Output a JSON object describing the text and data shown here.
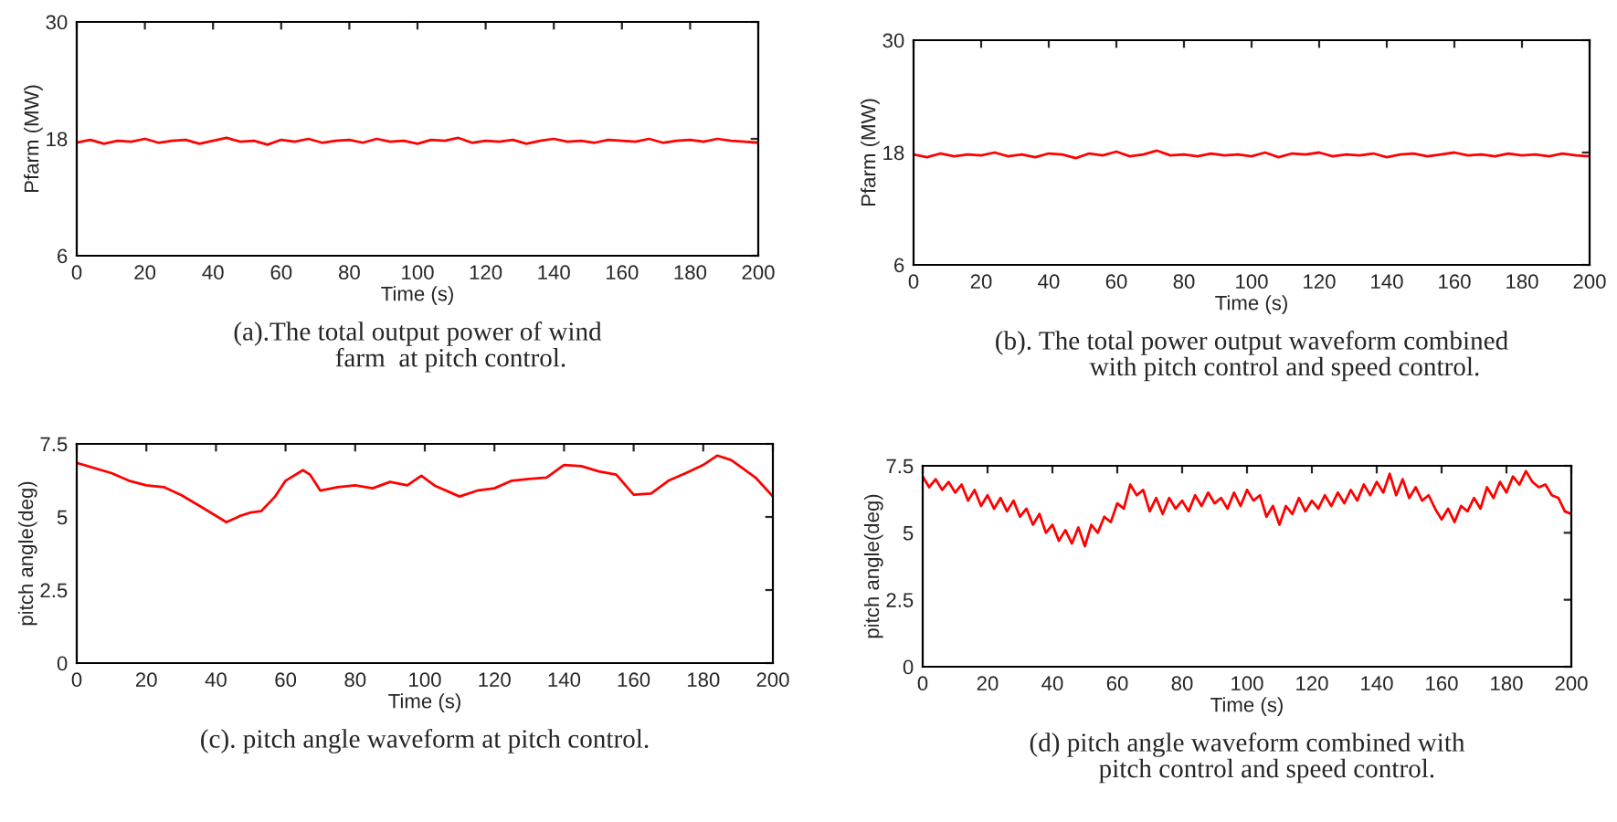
{
  "chart_data": [
    {
      "type": "line",
      "title": "(a).The total output power of wind\n          farm  at pitch control.",
      "xlabel": "Time (s)",
      "ylabel": "Pfarm (MW)",
      "xlim": [
        0,
        200
      ],
      "xticks": [
        0,
        20,
        40,
        60,
        80,
        100,
        120,
        140,
        160,
        180,
        200
      ],
      "ylim": [
        6,
        30
      ],
      "yticks": [
        6,
        18,
        30
      ],
      "grid": false,
      "series": [
        {
          "color": "#ff0000",
          "x": [
            0,
            4,
            8,
            12,
            16,
            20,
            24,
            28,
            32,
            36,
            40,
            44,
            48,
            52,
            56,
            60,
            64,
            68,
            72,
            76,
            80,
            84,
            88,
            92,
            96,
            100,
            104,
            108,
            112,
            116,
            120,
            124,
            128,
            132,
            136,
            140,
            144,
            148,
            152,
            156,
            160,
            164,
            168,
            172,
            176,
            180,
            184,
            188,
            192,
            196,
            200
          ],
          "values": [
            17.6,
            17.9,
            17.5,
            17.8,
            17.7,
            18.0,
            17.6,
            17.8,
            17.9,
            17.5,
            17.8,
            18.1,
            17.7,
            17.8,
            17.4,
            17.9,
            17.7,
            18.0,
            17.6,
            17.8,
            17.9,
            17.6,
            18.0,
            17.7,
            17.8,
            17.5,
            17.9,
            17.8,
            18.1,
            17.6,
            17.8,
            17.7,
            17.9,
            17.5,
            17.8,
            18.0,
            17.7,
            17.8,
            17.6,
            17.9,
            17.8,
            17.7,
            18.0,
            17.6,
            17.8,
            17.9,
            17.7,
            18.0,
            17.8,
            17.7,
            17.6
          ]
        }
      ]
    },
    {
      "type": "line",
      "title": "(b). The total power output waveform combined\n          with pitch control and speed control.",
      "xlabel": "Time (s)",
      "ylabel": "Pfarm (MW)",
      "xlim": [
        0,
        200
      ],
      "xticks": [
        0,
        20,
        40,
        60,
        80,
        100,
        120,
        140,
        160,
        180,
        200
      ],
      "ylim": [
        6,
        30
      ],
      "yticks": [
        6,
        18,
        30
      ],
      "grid": false,
      "series": [
        {
          "color": "#ff0000",
          "x": [
            0,
            4,
            8,
            12,
            16,
            20,
            24,
            28,
            32,
            36,
            40,
            44,
            48,
            52,
            56,
            60,
            64,
            68,
            72,
            76,
            80,
            84,
            88,
            92,
            96,
            100,
            104,
            108,
            112,
            116,
            120,
            124,
            128,
            132,
            136,
            140,
            144,
            148,
            152,
            156,
            160,
            164,
            168,
            172,
            176,
            180,
            184,
            188,
            192,
            196,
            200
          ],
          "values": [
            17.8,
            17.5,
            17.9,
            17.6,
            17.8,
            17.7,
            18.0,
            17.6,
            17.8,
            17.5,
            17.9,
            17.8,
            17.4,
            17.9,
            17.7,
            18.1,
            17.6,
            17.8,
            18.2,
            17.7,
            17.8,
            17.6,
            17.9,
            17.7,
            17.8,
            17.6,
            18.0,
            17.5,
            17.9,
            17.8,
            18.0,
            17.6,
            17.8,
            17.7,
            17.9,
            17.5,
            17.8,
            17.9,
            17.6,
            17.8,
            18.0,
            17.7,
            17.8,
            17.6,
            17.9,
            17.7,
            17.8,
            17.6,
            17.9,
            17.7,
            17.6
          ]
        }
      ]
    },
    {
      "type": "line",
      "title": "(c). pitch angle waveform at pitch control.",
      "xlabel": "Time (s)",
      "ylabel": "pitch angle(deg)",
      "xlim": [
        0,
        200
      ],
      "xticks": [
        0,
        20,
        40,
        60,
        80,
        100,
        120,
        140,
        160,
        180,
        200
      ],
      "ylim": [
        0,
        7.5
      ],
      "yticks": [
        0,
        2.5,
        5,
        7.5
      ],
      "grid": false,
      "series": [
        {
          "color": "#ff0000",
          "x": [
            0,
            10,
            15,
            20,
            25,
            30,
            35,
            40,
            43,
            47,
            50,
            53,
            57,
            60,
            65,
            67,
            70,
            75,
            80,
            85,
            90,
            95,
            99,
            103,
            110,
            115,
            120,
            125,
            130,
            135,
            140,
            145,
            150,
            155,
            160,
            165,
            170,
            175,
            180,
            184,
            188,
            195,
            200
          ],
          "values": [
            6.85,
            6.5,
            6.24,
            6.08,
            6.02,
            5.75,
            5.4,
            5.04,
            4.82,
            5.04,
            5.15,
            5.2,
            5.7,
            6.24,
            6.6,
            6.45,
            5.9,
            6.02,
            6.08,
            5.98,
            6.2,
            6.08,
            6.41,
            6.06,
            5.7,
            5.9,
            5.98,
            6.24,
            6.3,
            6.35,
            6.78,
            6.74,
            6.56,
            6.45,
            5.76,
            5.8,
            6.24,
            6.5,
            6.78,
            7.1,
            6.95,
            6.35,
            5.7
          ]
        }
      ]
    },
    {
      "type": "line",
      "title": "(d) pitch angle waveform combined with\n      pitch control and speed control.",
      "xlabel": "Time (s)",
      "ylabel": "pitch angle(deg)",
      "xlim": [
        0,
        200
      ],
      "xticks": [
        0,
        20,
        40,
        60,
        80,
        100,
        120,
        140,
        160,
        180,
        200
      ],
      "ylim": [
        0,
        7.5
      ],
      "yticks": [
        0,
        2.5,
        5,
        7.5
      ],
      "grid": false,
      "series": [
        {
          "color": "#ff0000",
          "x": [
            0,
            2,
            4,
            6,
            8,
            10,
            12,
            14,
            16,
            18,
            20,
            22,
            24,
            26,
            28,
            30,
            32,
            34,
            36,
            38,
            40,
            42,
            44,
            46,
            48,
            50,
            52,
            54,
            56,
            58,
            60,
            62,
            64,
            66,
            68,
            70,
            72,
            74,
            76,
            78,
            80,
            82,
            84,
            86,
            88,
            90,
            92,
            94,
            96,
            98,
            100,
            102,
            104,
            106,
            108,
            110,
            112,
            114,
            116,
            118,
            120,
            122,
            124,
            126,
            128,
            130,
            132,
            134,
            136,
            138,
            140,
            142,
            144,
            146,
            148,
            150,
            152,
            154,
            156,
            158,
            160,
            162,
            164,
            166,
            168,
            170,
            172,
            174,
            176,
            178,
            180,
            182,
            184,
            186,
            188,
            190,
            192,
            194,
            196,
            198,
            200
          ],
          "values": [
            7.1,
            6.7,
            7.0,
            6.6,
            6.9,
            6.5,
            6.8,
            6.2,
            6.6,
            6.0,
            6.4,
            5.9,
            6.3,
            5.8,
            6.2,
            5.6,
            5.9,
            5.3,
            5.7,
            5.0,
            5.3,
            4.7,
            5.1,
            4.6,
            5.2,
            4.5,
            5.3,
            5.0,
            5.6,
            5.4,
            6.1,
            5.9,
            6.8,
            6.4,
            6.6,
            5.8,
            6.3,
            5.7,
            6.3,
            5.9,
            6.2,
            5.8,
            6.4,
            6.0,
            6.5,
            6.1,
            6.3,
            5.9,
            6.5,
            6.0,
            6.6,
            6.2,
            6.4,
            5.6,
            6.0,
            5.3,
            6.0,
            5.7,
            6.3,
            5.8,
            6.2,
            5.9,
            6.4,
            6.0,
            6.5,
            6.1,
            6.6,
            6.2,
            6.8,
            6.4,
            6.9,
            6.5,
            7.2,
            6.4,
            7.0,
            6.3,
            6.7,
            6.2,
            6.4,
            5.9,
            5.5,
            5.9,
            5.4,
            6.0,
            5.8,
            6.3,
            5.9,
            6.7,
            6.3,
            6.9,
            6.5,
            7.1,
            6.8,
            7.3,
            6.9,
            6.7,
            6.8,
            6.4,
            6.3,
            5.8,
            5.7
          ]
        }
      ]
    }
  ]
}
